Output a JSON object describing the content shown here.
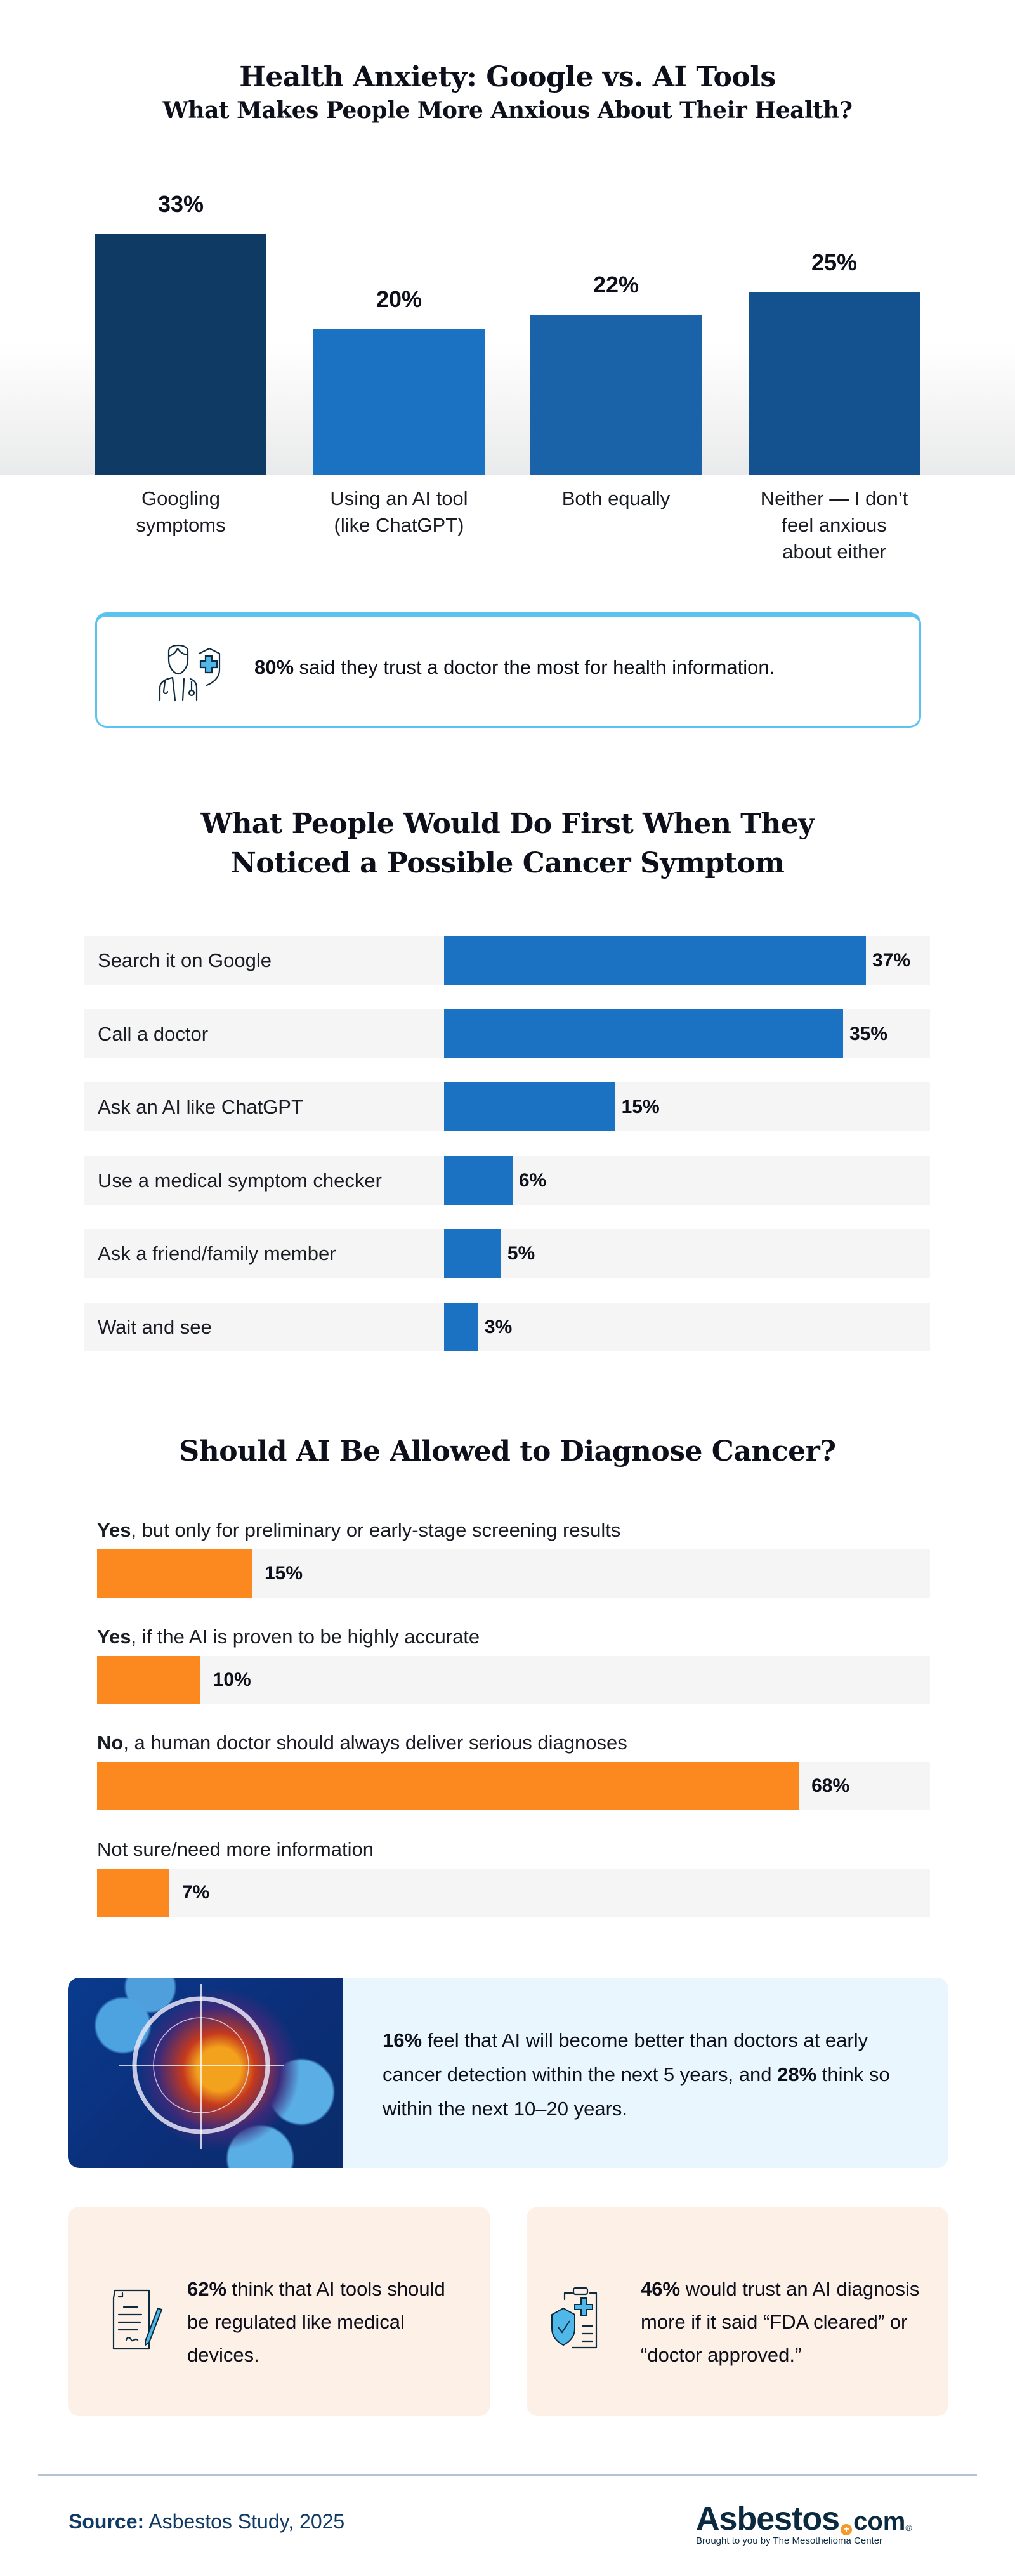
{
  "section1": {
    "title": "Health Anxiety: Google vs. AI Tools",
    "subtitle": "What Makes People More Anxious About Their Health?"
  },
  "chart_data": [
    {
      "type": "bar",
      "orientation": "vertical",
      "title": "What Makes People More Anxious About Their Health?",
      "categories": [
        "Googling symptoms",
        "Using an AI tool (like ChatGPT)",
        "Both equally",
        "Neither — I don’t feel anxious about either"
      ],
      "category_lines": [
        [
          "Googling",
          "symptoms"
        ],
        [
          "Using an AI tool",
          "(like ChatGPT)"
        ],
        [
          "Both equally"
        ],
        [
          "Neither — I don’t",
          "feel anxious",
          "about either"
        ]
      ],
      "values": [
        33,
        20,
        22,
        25
      ],
      "value_labels": [
        "33%",
        "20%",
        "22%",
        "25%"
      ],
      "colors": [
        "#0e3a64",
        "#1b72c2",
        "#1a63a8",
        "#14528f"
      ],
      "xlabel": "",
      "ylabel": "",
      "ylim": [
        0,
        33
      ],
      "grid": false
    },
    {
      "type": "bar",
      "orientation": "horizontal",
      "title": "What People Would Do First When They Noticed a Possible Cancer Symptom",
      "categories": [
        "Search it on Google",
        "Call a doctor",
        "Ask an AI like ChatGPT",
        "Use a medical symptom checker",
        "Ask a friend/family member",
        "Wait and see"
      ],
      "values": [
        37,
        35,
        15,
        6,
        5,
        3
      ],
      "value_labels": [
        "37%",
        "35%",
        "15%",
        "6%",
        "5%",
        "3%"
      ],
      "color": "#1b72c2",
      "xlim": [
        0,
        100
      ],
      "grid": false
    },
    {
      "type": "bar",
      "orientation": "horizontal",
      "title": "Should AI Be Allowed to Diagnose Cancer?",
      "categories": [
        "Yes, but only for preliminary or early-stage screening results",
        "Yes, if the AI is proven to be highly accurate",
        "No, a human doctor should always deliver serious diagnoses",
        "Not sure/need more information"
      ],
      "category_bold": [
        "Yes",
        "Yes",
        "No",
        ""
      ],
      "category_rest": [
        ", but only for preliminary or early-stage screening results",
        ", if the AI is proven to be highly accurate",
        ", a human doctor should always deliver serious diagnoses",
        "Not sure/need more information"
      ],
      "values": [
        15,
        10,
        68,
        7
      ],
      "value_labels": [
        "15%",
        "10%",
        "68%",
        "7%"
      ],
      "color": "#fb891f",
      "xlim": [
        0,
        100
      ],
      "grid": false
    }
  ],
  "doctor_callout": {
    "stat": "80%",
    "text": " said they trust a doctor the most for health information.",
    "icon": "doctor-shield-icon"
  },
  "section2": {
    "title_line1": "What People Would Do First When They",
    "title_line2": "Noticed a Possible Cancer Symptom"
  },
  "section3": {
    "title": "Should AI Be Allowed to Diagnose Cancer?"
  },
  "ai_card": {
    "image": "cancer-cell-target-image",
    "stat1": "16%",
    "text1": " feel that AI will become better than doctors at early cancer detection within the next 5 years, and ",
    "stat2": "28%",
    "text2": " think so within the next 10–20 years."
  },
  "regulation_card": {
    "icon": "signed-document-icon",
    "stat": "62%",
    "text": " think that AI tools should be regulated like medical devices."
  },
  "fda_card": {
    "icon": "clipboard-shield-icon",
    "stat": "46%",
    "text": " would trust an AI diagnosis more if it said “FDA cleared” or “doctor approved.”"
  },
  "footer": {
    "source_label": "Source:",
    "source_text": " Asbestos Study, 2025",
    "logo_word": "Asbestos",
    "logo_plus": "+",
    "logo_com": "com",
    "logo_reg": "®",
    "logo_tagline": "Brought to you by The Mesothelioma Center"
  }
}
